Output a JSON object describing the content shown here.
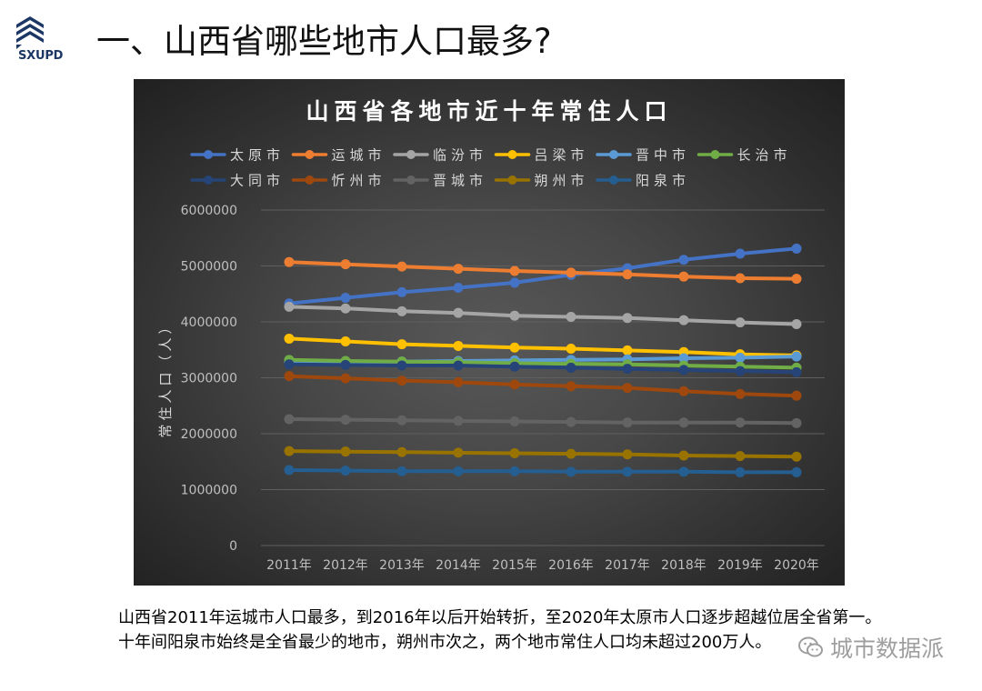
{
  "logo": {
    "text": "SXUPD"
  },
  "slide": {
    "title": "一、山西省哪些地市人口最多?"
  },
  "chart_data": {
    "type": "line",
    "title": "山西省各地市近十年常住人口",
    "ylabel": "常住人口（人）",
    "categories": [
      "2011年",
      "2012年",
      "2013年",
      "2014年",
      "2015年",
      "2016年",
      "2017年",
      "2018年",
      "2019年",
      "2020年"
    ],
    "ylim": [
      0,
      6000000
    ],
    "yticks": [
      0,
      1000000,
      2000000,
      3000000,
      4000000,
      5000000,
      6000000
    ],
    "grid": true,
    "legend": "top",
    "markers": true,
    "series": [
      {
        "name": "太原市",
        "color": "#4472C4",
        "values": [
          4330000,
          4430000,
          4530000,
          4610000,
          4700000,
          4840000,
          4960000,
          5110000,
          5220000,
          5310000
        ]
      },
      {
        "name": "运城市",
        "color": "#ED7D31",
        "values": [
          5070000,
          5030000,
          4990000,
          4950000,
          4910000,
          4880000,
          4850000,
          4810000,
          4780000,
          4770000
        ]
      },
      {
        "name": "临汾市",
        "color": "#A5A5A5",
        "values": [
          4270000,
          4240000,
          4190000,
          4160000,
          4110000,
          4090000,
          4070000,
          4030000,
          3990000,
          3960000
        ]
      },
      {
        "name": "吕梁市",
        "color": "#FFC000",
        "values": [
          3700000,
          3650000,
          3600000,
          3570000,
          3540000,
          3520000,
          3490000,
          3460000,
          3420000,
          3400000
        ]
      },
      {
        "name": "晋中市",
        "color": "#5B9BD5",
        "values": [
          3280000,
          3280000,
          3290000,
          3300000,
          3310000,
          3320000,
          3330000,
          3350000,
          3360000,
          3380000
        ]
      },
      {
        "name": "长治市",
        "color": "#70AD47",
        "values": [
          3320000,
          3300000,
          3290000,
          3280000,
          3260000,
          3250000,
          3240000,
          3220000,
          3200000,
          3180000
        ]
      },
      {
        "name": "大同市",
        "color": "#264478",
        "values": [
          3240000,
          3230000,
          3220000,
          3220000,
          3200000,
          3180000,
          3160000,
          3140000,
          3120000,
          3100000
        ]
      },
      {
        "name": "忻州市",
        "color": "#9E480E",
        "values": [
          3030000,
          2990000,
          2950000,
          2920000,
          2880000,
          2850000,
          2820000,
          2760000,
          2710000,
          2680000
        ]
      },
      {
        "name": "晋城市",
        "color": "#636363",
        "values": [
          2260000,
          2250000,
          2240000,
          2230000,
          2220000,
          2210000,
          2200000,
          2200000,
          2200000,
          2190000
        ]
      },
      {
        "name": "朔州市",
        "color": "#997300",
        "values": [
          1690000,
          1680000,
          1670000,
          1660000,
          1650000,
          1640000,
          1630000,
          1610000,
          1600000,
          1590000
        ]
      },
      {
        "name": "阳泉市",
        "color": "#255E91",
        "values": [
          1350000,
          1340000,
          1330000,
          1330000,
          1330000,
          1320000,
          1320000,
          1320000,
          1310000,
          1310000
        ]
      }
    ]
  },
  "summary": {
    "lines": [
      "山西省2011年运城市人口最多，到2016年以后开始转折，至2020年太原市人口逐步超越位居全省第一。",
      "十年间阳泉市始终是全省最少的地市，朔州市次之，两个地市常住人口均未超过200万人。"
    ]
  },
  "watermark": {
    "icon": "wechat-icon",
    "text": "城市数据派"
  }
}
